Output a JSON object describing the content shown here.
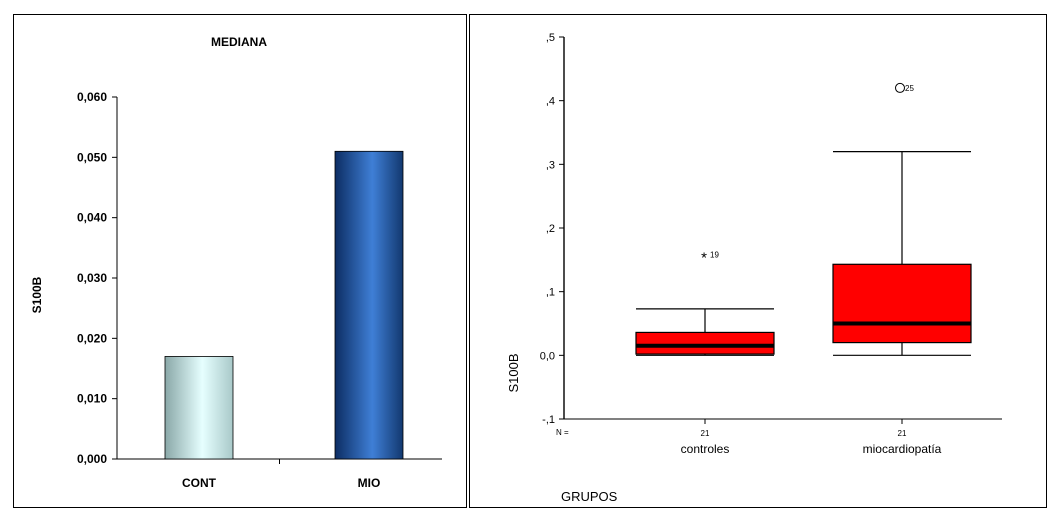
{
  "chart_data": [
    {
      "type": "bar",
      "title": "MEDIANA",
      "ylabel": "S100B",
      "xlabel": "",
      "ylim": [
        0,
        0.06
      ],
      "yticks": [
        "0,000",
        "0,010",
        "0,020",
        "0,030",
        "0,040",
        "0,050",
        "0,060"
      ],
      "ytick_values": [
        0,
        0.01,
        0.02,
        0.03,
        0.04,
        0.05,
        0.06
      ],
      "categories": [
        "CONT",
        "MIO"
      ],
      "values": [
        0.017,
        0.051
      ],
      "colors": [
        "#b8dcdc",
        "#1f4f9c"
      ]
    },
    {
      "type": "box",
      "ylabel": "S100B",
      "xlabel": "GRUPOS",
      "ylim": [
        -0.1,
        0.5
      ],
      "yticks": [
        "-,1",
        "0,0",
        ",1",
        ",2",
        ",3",
        ",4",
        ",5"
      ],
      "ytick_values": [
        -0.1,
        0,
        0.1,
        0.2,
        0.3,
        0.4,
        0.5
      ],
      "n_label": "N =",
      "categories": [
        "controles",
        "miocardiopatía"
      ],
      "n": [
        "21",
        "21"
      ],
      "boxes": [
        {
          "min": 0.0,
          "q1": 0.002,
          "median": 0.015,
          "q3": 0.036,
          "max": 0.073,
          "outliers": [
            {
              "value": 0.155,
              "symbol": "*",
              "label": "19"
            }
          ]
        },
        {
          "min": 0.0,
          "q1": 0.02,
          "median": 0.05,
          "q3": 0.143,
          "max": 0.32,
          "outliers": [
            {
              "value": 0.42,
              "symbol": "O",
              "label": "25"
            }
          ]
        }
      ],
      "box_color": "#ff0000"
    }
  ]
}
